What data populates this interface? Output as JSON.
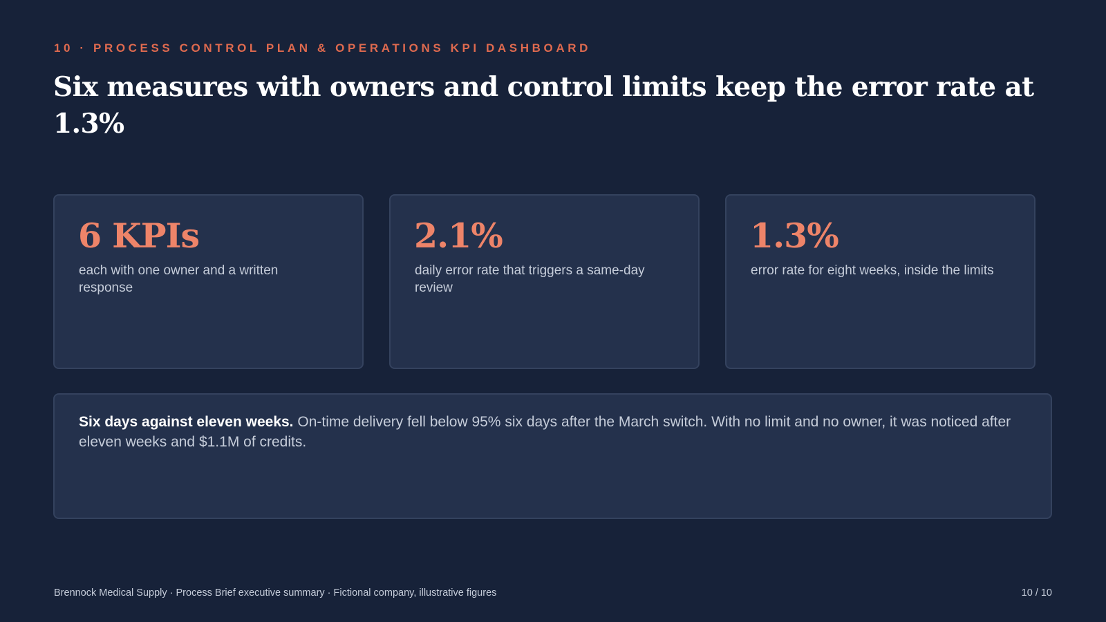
{
  "header": {
    "eyebrow": "10 · PROCESS CONTROL PLAN & OPERATIONS KPI DASHBOARD",
    "title": "Six measures with owners and control limits keep the error rate at 1.3%"
  },
  "kpi_cards": [
    {
      "value": "6 KPIs",
      "caption": "each with one owner and a written response"
    },
    {
      "value": "2.1%",
      "caption": "daily error rate that triggers a same-day review"
    },
    {
      "value": "1.3%",
      "caption": "error rate for eight weeks, inside the limits"
    }
  ],
  "callout": {
    "lead": "Six days against eleven weeks.",
    "body": "On-time delivery fell below 95% six days after the March switch. With no limit and no owner, it was noticed after eleven weeks and $1.1M of credits."
  },
  "footer": {
    "source": "Brennock Medical Supply · Process Brief executive summary · Fictional company, illustrative figures",
    "page": "10 / 10"
  },
  "colors": {
    "background": "#172239",
    "card": "#24314c",
    "accent": "#df6a4f",
    "kpi_value": "#ee8469",
    "muted_text": "#c5ccd9"
  }
}
